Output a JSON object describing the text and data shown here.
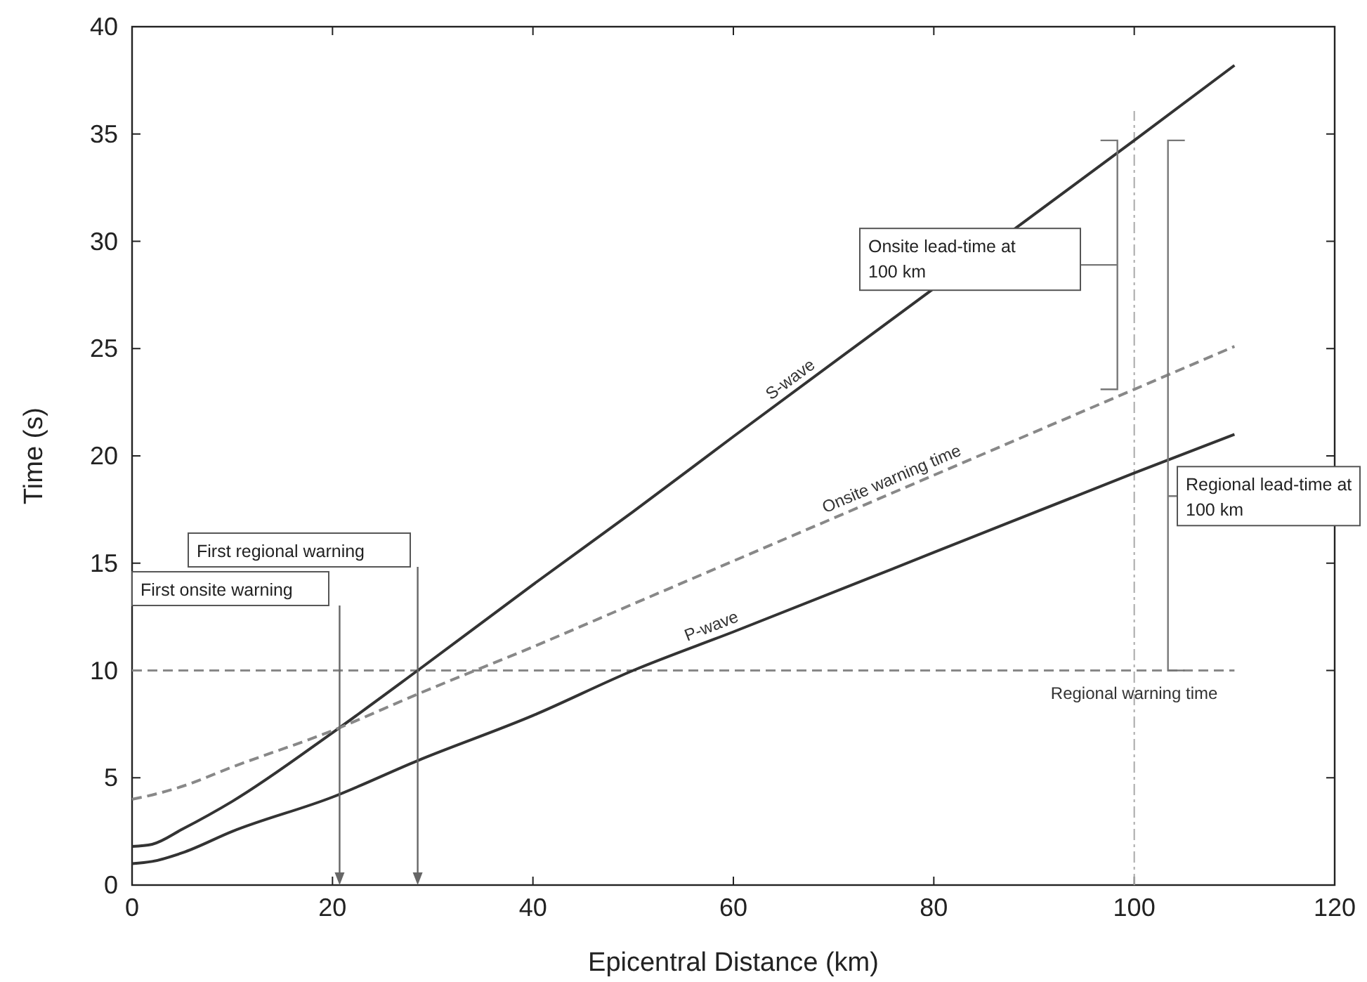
{
  "chart_data": {
    "type": "line",
    "xlabel": "Epicentral Distance (km)",
    "ylabel": "Time (s)",
    "xlim": [
      0,
      120
    ],
    "xticks": [
      0,
      20,
      40,
      60,
      80,
      100,
      120
    ],
    "ylim": [
      0,
      40
    ],
    "yticks": [
      0,
      5,
      10,
      15,
      20,
      25,
      30,
      35,
      40
    ],
    "x": [
      0,
      2,
      5,
      10,
      20,
      28.5,
      40,
      50,
      60,
      80,
      100,
      110
    ],
    "series": [
      {
        "name": "S-wave",
        "color": "#333333",
        "line_style": "solid",
        "values": [
          1.8,
          1.9,
          2.6,
          3.9,
          7.1,
          10.0,
          14.0,
          17.4,
          20.9,
          27.8,
          34.7,
          38.2
        ]
      },
      {
        "name": "P-wave",
        "color": "#333333",
        "line_style": "solid",
        "values": [
          1.0,
          1.1,
          1.5,
          2.5,
          4.1,
          5.8,
          7.9,
          10.0,
          11.8,
          15.5,
          19.2,
          21.0
        ]
      },
      {
        "name": "Onsite warning time",
        "color": "#888888",
        "line_style": "dashed",
        "values": [
          4.0,
          4.2,
          4.6,
          5.5,
          7.2,
          8.9,
          11.1,
          13.1,
          15.1,
          19.1,
          23.1,
          25.1
        ]
      }
    ],
    "ref_lines": [
      {
        "axis": "y",
        "value": 10,
        "label": "Regional warning time",
        "color": "#888888",
        "line_style": "dashed"
      },
      {
        "axis": "x",
        "value": 100,
        "color": "#aaaaaa",
        "line_style": "dashed"
      }
    ],
    "annotations": [
      "First onsite warning",
      "First regional warning",
      "Onsite lead-time at 100 km",
      "Regional lead-time at 100 km"
    ],
    "grid": false,
    "legend": false,
    "marker": "none"
  }
}
